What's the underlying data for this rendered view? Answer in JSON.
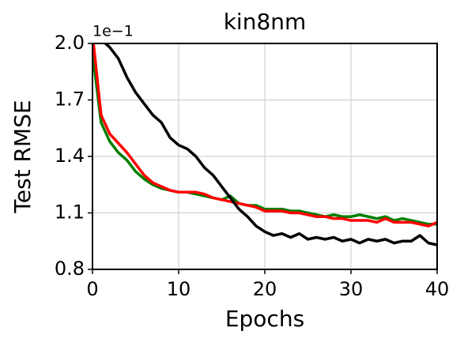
{
  "chart_data": {
    "type": "line",
    "title": "kin8nm",
    "xlabel": "Epochs",
    "ylabel": "Test RMSE",
    "y_offset_text": "1e−1",
    "x": [
      0,
      1,
      2,
      3,
      4,
      5,
      6,
      7,
      8,
      9,
      10,
      11,
      12,
      13,
      14,
      15,
      16,
      17,
      18,
      19,
      20,
      21,
      22,
      23,
      24,
      25,
      26,
      27,
      28,
      29,
      30,
      31,
      32,
      33,
      34,
      35,
      36,
      37,
      38,
      39,
      40
    ],
    "series": [
      {
        "color": "#008000",
        "values": [
          1.95,
          1.58,
          1.48,
          1.42,
          1.38,
          1.32,
          1.28,
          1.25,
          1.23,
          1.22,
          1.21,
          1.21,
          1.2,
          1.19,
          1.18,
          1.17,
          1.19,
          1.15,
          1.14,
          1.14,
          1.12,
          1.12,
          1.12,
          1.11,
          1.11,
          1.1,
          1.09,
          1.08,
          1.09,
          1.08,
          1.08,
          1.09,
          1.08,
          1.07,
          1.08,
          1.06,
          1.07,
          1.06,
          1.05,
          1.04,
          1.04
        ]
      },
      {
        "color": "#ff0000",
        "values": [
          2.05,
          1.62,
          1.52,
          1.47,
          1.42,
          1.36,
          1.3,
          1.26,
          1.24,
          1.22,
          1.21,
          1.21,
          1.21,
          1.2,
          1.18,
          1.17,
          1.16,
          1.15,
          1.14,
          1.13,
          1.11,
          1.11,
          1.11,
          1.1,
          1.1,
          1.09,
          1.08,
          1.08,
          1.07,
          1.07,
          1.06,
          1.06,
          1.06,
          1.05,
          1.07,
          1.05,
          1.05,
          1.05,
          1.04,
          1.03,
          1.05
        ]
      },
      {
        "color": "#000000",
        "values": [
          2.05,
          2.02,
          1.98,
          1.92,
          1.82,
          1.74,
          1.68,
          1.62,
          1.58,
          1.5,
          1.46,
          1.44,
          1.4,
          1.34,
          1.3,
          1.24,
          1.18,
          1.12,
          1.08,
          1.03,
          1.0,
          0.98,
          0.99,
          0.97,
          0.99,
          0.96,
          0.97,
          0.96,
          0.97,
          0.95,
          0.96,
          0.94,
          0.96,
          0.95,
          0.96,
          0.94,
          0.95,
          0.95,
          0.98,
          0.94,
          0.93
        ]
      }
    ],
    "xlim": [
      0,
      40
    ],
    "xticks": [
      0,
      10,
      20,
      30,
      40
    ],
    "ylim": [
      0.8,
      2.0
    ],
    "yticks": [
      {
        "value": 0.8,
        "label": "0.8"
      },
      {
        "value": 1.1,
        "label": "1.1"
      },
      {
        "value": 1.4,
        "label": "1.4"
      },
      {
        "value": 1.7,
        "label": "1.7"
      },
      {
        "value": 2.0,
        "label": "2.0"
      }
    ],
    "grid": true
  }
}
